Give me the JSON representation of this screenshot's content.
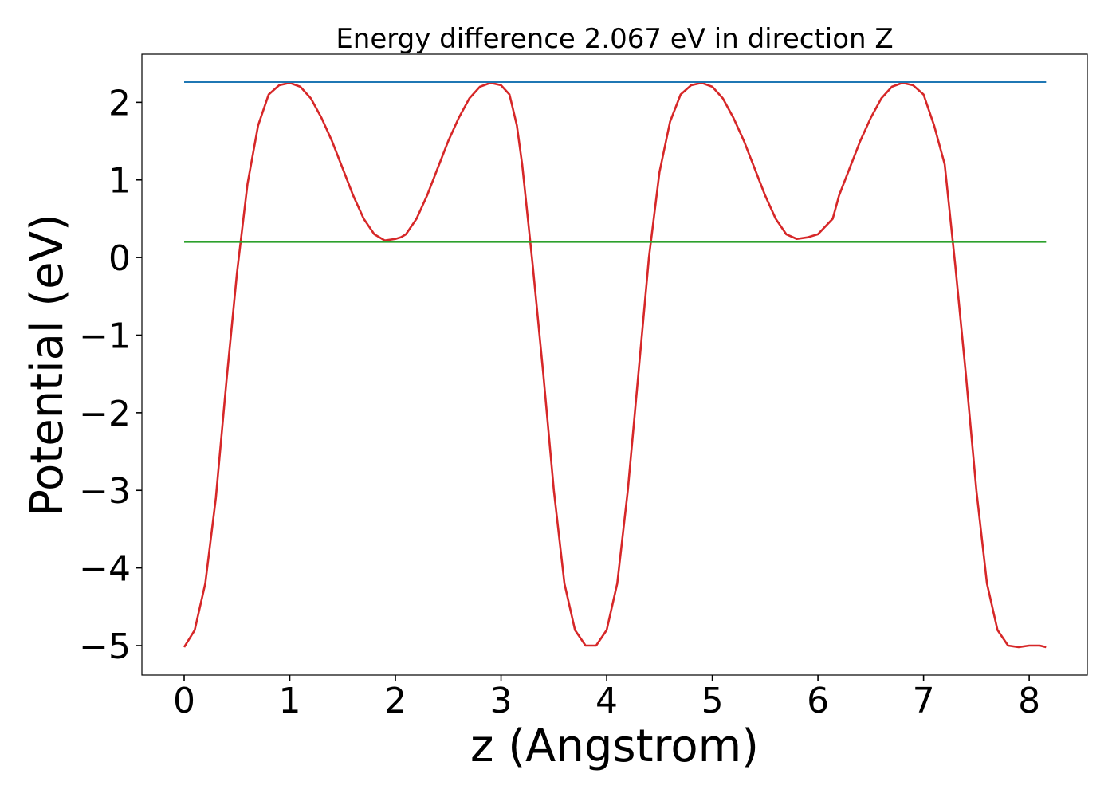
{
  "chart_data": {
    "type": "line",
    "title": "Energy difference 2.067 eV in direction Z",
    "xlabel": "z (Angstrom)",
    "ylabel": "Potential (eV)",
    "xlim": [
      -0.4,
      8.55
    ],
    "ylim": [
      -5.38,
      2.62
    ],
    "xticks": [
      0,
      1,
      2,
      3,
      4,
      5,
      6,
      7,
      8
    ],
    "xtick_labels": [
      "0",
      "1",
      "2",
      "3",
      "4",
      "5",
      "6",
      "7",
      "8"
    ],
    "yticks": [
      -5,
      -4,
      -3,
      -2,
      -1,
      0,
      1,
      2
    ],
    "ytick_labels": [
      "−5",
      "−4",
      "−3",
      "−2",
      "−1",
      "0",
      "1",
      "2"
    ],
    "grid": false,
    "legend": "none",
    "series": [
      {
        "color": "#d62728",
        "x": [
          0.0,
          0.1,
          0.2,
          0.3,
          0.4,
          0.5,
          0.6,
          0.7,
          0.8,
          0.9,
          1.0,
          1.1,
          1.2,
          1.3,
          1.4,
          1.5,
          1.6,
          1.7,
          1.8,
          1.9,
          2.0,
          2.05,
          2.1,
          2.2,
          2.3,
          2.4,
          2.5,
          2.6,
          2.7,
          2.8,
          2.9,
          3.0,
          3.08,
          3.15,
          3.2,
          3.3,
          3.4,
          3.5,
          3.6,
          3.7,
          3.8,
          3.9,
          4.0,
          4.1,
          4.2,
          4.3,
          4.4,
          4.5,
          4.6,
          4.7,
          4.8,
          4.9,
          5.0,
          5.1,
          5.2,
          5.3,
          5.4,
          5.5,
          5.6,
          5.7,
          5.8,
          5.9,
          6.0,
          6.14,
          6.2,
          6.3,
          6.4,
          6.5,
          6.6,
          6.7,
          6.8,
          6.9,
          7.0,
          7.1,
          7.2,
          7.3,
          7.4,
          7.5,
          7.6,
          7.7,
          7.8,
          7.9,
          8.0,
          8.1,
          8.16
        ],
        "y": [
          -5.02,
          -4.8,
          -4.2,
          -3.1,
          -1.6,
          -0.2,
          0.95,
          1.7,
          2.1,
          2.22,
          2.25,
          2.2,
          2.05,
          1.8,
          1.5,
          1.15,
          0.8,
          0.5,
          0.3,
          0.22,
          0.24,
          0.26,
          0.3,
          0.5,
          0.8,
          1.15,
          1.5,
          1.8,
          2.05,
          2.2,
          2.25,
          2.22,
          2.1,
          1.7,
          1.2,
          -0.1,
          -1.5,
          -3.0,
          -4.2,
          -4.8,
          -5.0,
          -5.0,
          -4.8,
          -4.2,
          -3.0,
          -1.5,
          0.0,
          1.1,
          1.75,
          2.1,
          2.22,
          2.25,
          2.2,
          2.05,
          1.8,
          1.5,
          1.15,
          0.8,
          0.5,
          0.3,
          0.24,
          0.26,
          0.3,
          0.5,
          0.8,
          1.15,
          1.5,
          1.8,
          2.05,
          2.2,
          2.25,
          2.22,
          2.1,
          1.7,
          1.2,
          -0.1,
          -1.5,
          -3.0,
          -4.2,
          -4.8,
          -5.0,
          -5.02,
          -5.0,
          -5.0,
          -5.02
        ]
      },
      {
        "color": "#1f77b4",
        "x": [
          0.0,
          8.16
        ],
        "y": [
          2.26,
          2.26
        ]
      },
      {
        "color": "#2ca02c",
        "x": [
          0.0,
          8.16
        ],
        "y": [
          0.2,
          0.2
        ]
      }
    ]
  }
}
